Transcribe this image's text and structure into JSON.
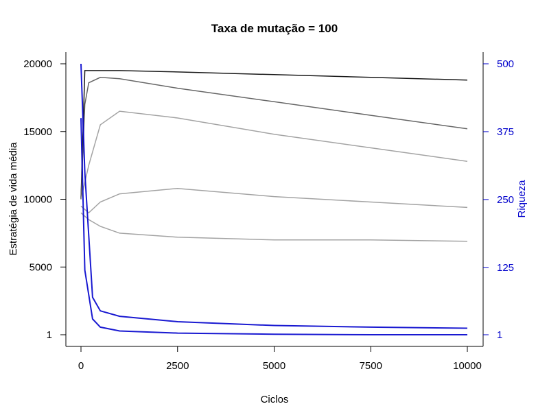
{
  "chart_data": {
    "type": "line",
    "title": "Taxa de mutação = 100",
    "xlabel": "Ciclos",
    "ylabel_left": "Estratégia de vida média",
    "ylabel_right": "Riqueza",
    "xlim": [
      0,
      10000
    ],
    "ylim_left": [
      1,
      20000
    ],
    "ylim_right": [
      1,
      500
    ],
    "x_ticks": [
      0,
      2500,
      5000,
      7500,
      10000
    ],
    "y_left_ticks": [
      1,
      5000,
      10000,
      15000,
      20000
    ],
    "y_right_ticks": [
      1,
      125,
      250,
      375,
      500
    ],
    "grid": false,
    "legend": "none",
    "colors": {
      "strategy_dark": "#000000",
      "strategy_mid": "#555555",
      "strategy_light": "#999999",
      "wealth": "#0000cc",
      "right_axis": "#0000cc",
      "axes": "#000000"
    },
    "series": [
      {
        "axis": "left",
        "color": "#000000",
        "description_group": "strategy-top",
        "x": [
          0,
          100,
          200,
          500,
          1000,
          2500,
          5000,
          7500,
          10000
        ],
        "y": [
          10000,
          19500,
          19500,
          19500,
          19500,
          19400,
          19200,
          19000,
          18800
        ]
      },
      {
        "axis": "left",
        "color": "#555555",
        "description_group": "strategy-upper",
        "x": [
          0,
          100,
          200,
          500,
          1000,
          2500,
          5000,
          7500,
          10000
        ],
        "y": [
          10000,
          17000,
          18600,
          19000,
          18900,
          18200,
          17200,
          16200,
          15200
        ]
      },
      {
        "axis": "left",
        "color": "#999999",
        "description_group": "strategy-middle",
        "x": [
          0,
          200,
          500,
          1000,
          2500,
          5000,
          7500,
          10000
        ],
        "y": [
          10000,
          12500,
          15500,
          16500,
          16000,
          14800,
          13800,
          12800
        ]
      },
      {
        "axis": "left",
        "color": "#999999",
        "description_group": "strategy-low",
        "x": [
          0,
          200,
          500,
          1000,
          2500,
          5000,
          7500,
          10000
        ],
        "y": [
          9500,
          9000,
          9800,
          10400,
          10800,
          10200,
          9800,
          9400
        ]
      },
      {
        "axis": "left",
        "color": "#999999",
        "description_group": "strategy-lowest",
        "x": [
          0,
          200,
          500,
          1000,
          2500,
          5000,
          7500,
          10000
        ],
        "y": [
          9000,
          8500,
          8000,
          7500,
          7200,
          7000,
          7000,
          6900
        ]
      },
      {
        "axis": "right",
        "color": "#0000cc",
        "description_group": "wealth-upper",
        "x": [
          0,
          100,
          300,
          500,
          1000,
          2500,
          5000,
          7500,
          10000
        ],
        "y": [
          500,
          300,
          70,
          45,
          35,
          25,
          18,
          15,
          13
        ]
      },
      {
        "axis": "right",
        "color": "#0000cc",
        "description_group": "wealth-lower",
        "x": [
          0,
          100,
          300,
          500,
          1000,
          2500,
          5000,
          7500,
          10000
        ],
        "y": [
          400,
          120,
          30,
          15,
          8,
          4,
          2,
          1,
          1
        ]
      }
    ]
  }
}
